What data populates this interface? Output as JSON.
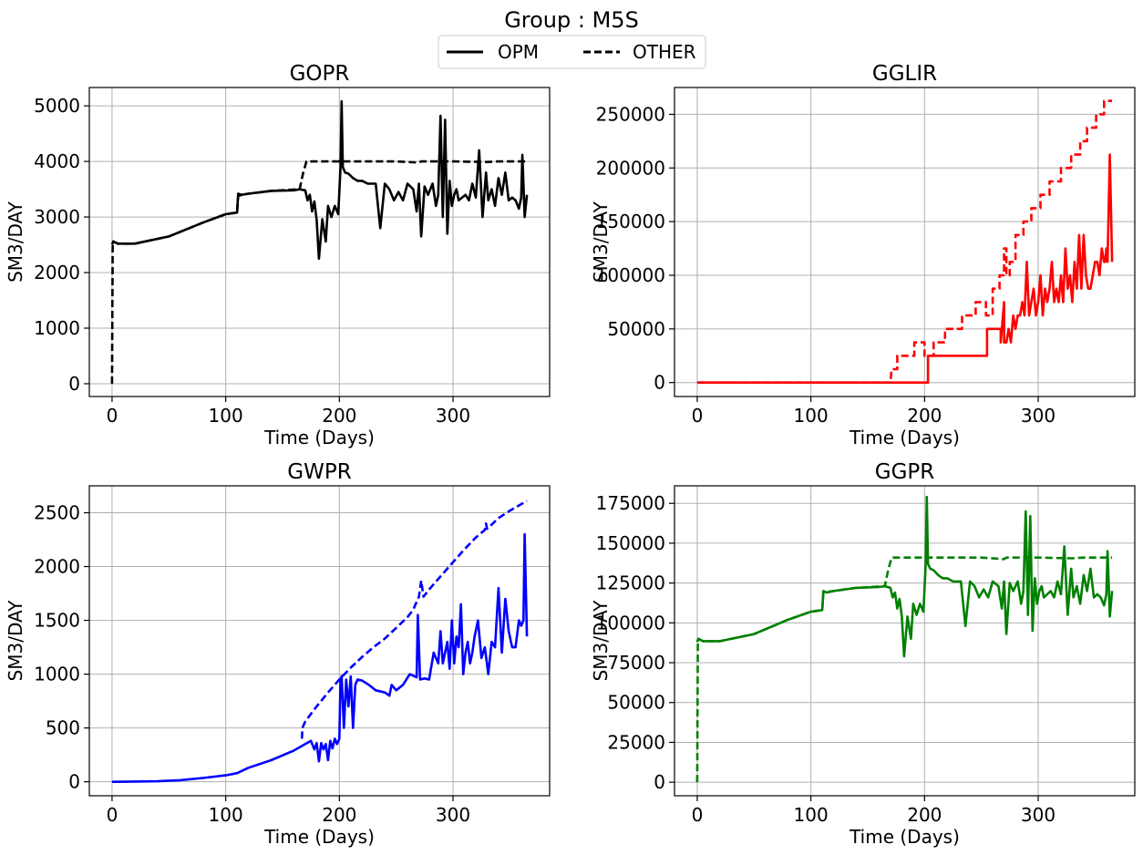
{
  "figure": {
    "title": "Group : M5S"
  },
  "legend": {
    "placement": "top-center",
    "items": [
      {
        "label": "OPM",
        "style": "solid"
      },
      {
        "label": "OTHER",
        "style": "dashed"
      }
    ]
  },
  "chart_data": [
    {
      "type": "line",
      "title": "GOPR",
      "xlabel": "Time (Days)",
      "ylabel": "SM3/DAY",
      "xlim": [
        -20,
        385
      ],
      "ylim": [
        -230,
        5330
      ],
      "xticks": [
        0,
        100,
        200,
        300
      ],
      "yticks": [
        0,
        1000,
        2000,
        3000,
        4000,
        5000
      ],
      "grid": true,
      "color": "#000000",
      "series": [
        {
          "name": "OPM",
          "style": "solid",
          "x": [
            0,
            1,
            5,
            20,
            50,
            80,
            100,
            110,
            111,
            114,
            120,
            140,
            160,
            165,
            170,
            172,
            174,
            176,
            178,
            180,
            182,
            185,
            188,
            190,
            193,
            196,
            199,
            201,
            202,
            203,
            205,
            208,
            212,
            216,
            220,
            225,
            232,
            236,
            240,
            244,
            248,
            252,
            256,
            260,
            265,
            268,
            270,
            272,
            275,
            278,
            282,
            285,
            287,
            289,
            291,
            293,
            295,
            297,
            299,
            301,
            303,
            305,
            308,
            311,
            314,
            317,
            320,
            323,
            326,
            329,
            331,
            334,
            337,
            340,
            343,
            346,
            349,
            352,
            355,
            358,
            360,
            361,
            363,
            365
          ],
          "y": [
            2500,
            2560,
            2520,
            2520,
            2650,
            2900,
            3050,
            3080,
            3420,
            3400,
            3420,
            3470,
            3480,
            3500,
            3480,
            3300,
            3400,
            3100,
            3280,
            2950,
            2250,
            2960,
            2560,
            3200,
            3000,
            3200,
            3050,
            3900,
            5080,
            3900,
            3800,
            3780,
            3700,
            3650,
            3650,
            3600,
            3600,
            2800,
            3600,
            3500,
            3300,
            3450,
            3300,
            3600,
            3500,
            3100,
            3600,
            2650,
            3550,
            3400,
            3600,
            3200,
            3400,
            4820,
            3000,
            4750,
            2700,
            3650,
            3200,
            3400,
            3500,
            3300,
            3350,
            3400,
            3300,
            3600,
            3350,
            4200,
            3000,
            3800,
            3300,
            3500,
            3200,
            3700,
            3400,
            3800,
            3300,
            3350,
            3300,
            3150,
            3350,
            4120,
            3000,
            3400
          ]
        },
        {
          "name": "OTHER",
          "style": "dashed",
          "x": [
            0,
            0.5,
            1,
            5,
            20,
            50,
            80,
            100,
            110,
            111,
            115,
            120,
            140,
            165,
            168,
            171,
            200,
            250,
            270,
            272,
            274,
            300,
            330,
            340,
            365
          ],
          "y": [
            0,
            2460,
            2560,
            2520,
            2520,
            2650,
            2900,
            3050,
            3080,
            3380,
            3400,
            3420,
            3470,
            3500,
            3780,
            4000,
            4000,
            4000,
            3980,
            4000,
            4000,
            4000,
            3990,
            4000,
            4000
          ]
        }
      ]
    },
    {
      "type": "line",
      "title": "GGLIR",
      "xlabel": "Time (Days)",
      "ylabel": "SM3/DAY",
      "xlim": [
        -20,
        385
      ],
      "ylim": [
        -13000,
        275000
      ],
      "xticks": [
        0,
        100,
        200,
        300
      ],
      "yticks": [
        0,
        50000,
        100000,
        150000,
        200000,
        250000
      ],
      "grid": true,
      "color": "#ff0000",
      "series": [
        {
          "name": "OPM",
          "style": "solid",
          "x": [
            0,
            203,
            203,
            255,
            255,
            267,
            267,
            270,
            270,
            272,
            274,
            276,
            278,
            280,
            282,
            284,
            286,
            288,
            290,
            292,
            294,
            296,
            298,
            300,
            302,
            304,
            306,
            308,
            310,
            312,
            314,
            316,
            318,
            320,
            322,
            324,
            326,
            328,
            330,
            332,
            334,
            336,
            338,
            340,
            342,
            344,
            346,
            348,
            350,
            352,
            354,
            356,
            358,
            359,
            360,
            361,
            363,
            365
          ],
          "y": [
            0,
            0,
            25000,
            25000,
            50000,
            50000,
            37500,
            75000,
            37500,
            37500,
            50000,
            37500,
            62500,
            50000,
            62500,
            62500,
            75000,
            62500,
            112500,
            62500,
            75000,
            87500,
            62500,
            75000,
            100000,
            62500,
            87500,
            75000,
            87500,
            112500,
            75000,
            87500,
            75000,
            100000,
            75000,
            125000,
            87500,
            100000,
            75000,
            112500,
            87500,
            137500,
            87500,
            137500,
            100000,
            87500,
            87500,
            100000,
            112500,
            112500,
            100000,
            125000,
            112500,
            112500,
            125000,
            112500,
            212500,
            112500
          ]
        },
        {
          "name": "OTHER",
          "style": "dashed",
          "x": [
            0,
            170,
            171,
            176,
            176,
            191,
            191,
            200,
            200,
            208,
            208,
            218,
            218,
            233,
            233,
            245,
            245,
            254,
            254,
            260,
            260,
            266,
            266,
            270,
            270,
            272,
            272,
            275,
            275,
            280,
            280,
            287,
            287,
            294,
            294,
            302,
            302,
            310,
            310,
            320,
            320,
            329,
            329,
            337,
            337,
            343,
            343,
            351,
            351,
            358,
            358,
            365
          ],
          "y": [
            0,
            0,
            12500,
            12500,
            25000,
            25000,
            37500,
            37500,
            25000,
            25000,
            37500,
            37500,
            50000,
            50000,
            62500,
            62500,
            75000,
            75000,
            62500,
            62500,
            87500,
            87500,
            100000,
            100000,
            125000,
            125000,
            100000,
            100000,
            112500,
            112500,
            137500,
            137500,
            150000,
            150000,
            162500,
            162500,
            175000,
            175000,
            187500,
            187500,
            200000,
            200000,
            212500,
            212500,
            225000,
            225000,
            237500,
            237500,
            250000,
            250000,
            262500,
            262500
          ]
        }
      ]
    },
    {
      "type": "line",
      "title": "GWPR",
      "xlabel": "Time (Days)",
      "ylabel": "SM3/DAY",
      "xlim": [
        -20,
        385
      ],
      "ylim": [
        -130,
        2750
      ],
      "xticks": [
        0,
        100,
        200,
        300
      ],
      "yticks": [
        0,
        500,
        1000,
        1500,
        2000,
        2500
      ],
      "grid": true,
      "color": "#0000ff",
      "series": [
        {
          "name": "OPM",
          "style": "solid",
          "x": [
            0,
            20,
            40,
            60,
            80,
            100,
            110,
            120,
            140,
            160,
            170,
            175,
            178,
            180,
            182,
            184,
            186,
            188,
            190,
            192,
            194,
            196,
            198,
            200,
            201,
            202,
            204,
            206,
            208,
            210,
            212,
            214,
            216,
            220,
            226,
            232,
            240,
            244,
            246,
            250,
            256,
            262,
            268,
            269,
            271,
            275,
            279,
            283,
            287,
            289,
            291,
            293,
            295,
            297,
            299,
            301,
            303,
            305,
            307,
            309,
            311,
            313,
            315,
            317,
            319,
            322,
            325,
            328,
            331,
            334,
            337,
            340,
            343,
            346,
            349,
            352,
            355,
            358,
            360,
            362,
            363,
            365
          ],
          "y": [
            0,
            2,
            5,
            15,
            35,
            60,
            80,
            130,
            200,
            290,
            350,
            380,
            300,
            360,
            190,
            360,
            300,
            350,
            200,
            380,
            310,
            400,
            350,
            400,
            950,
            980,
            500,
            950,
            700,
            980,
            500,
            900,
            950,
            940,
            900,
            850,
            830,
            800,
            900,
            850,
            900,
            1000,
            970,
            1550,
            950,
            960,
            950,
            1200,
            1100,
            1400,
            1100,
            1200,
            1300,
            1050,
            1500,
            1100,
            1350,
            1250,
            1650,
            1000,
            1200,
            1300,
            1100,
            1200,
            1350,
            1500,
            1150,
            1250,
            1000,
            1300,
            1250,
            1800,
            1200,
            1700,
            1400,
            1250,
            1250,
            1500,
            1450,
            1500,
            2300,
            1350
          ]
        },
        {
          "name": "OTHER",
          "style": "dashed",
          "x": [
            167,
            167.5,
            170,
            180,
            190,
            200,
            210,
            220,
            230,
            240,
            250,
            260,
            265,
            270,
            272,
            274,
            280,
            290,
            300,
            310,
            320,
            328,
            329,
            330,
            335,
            340,
            350,
            360,
            365
          ],
          "y": [
            400,
            500,
            560,
            700,
            830,
            950,
            1060,
            1160,
            1250,
            1330,
            1430,
            1530,
            1600,
            1720,
            1870,
            1720,
            1800,
            1920,
            2040,
            2160,
            2270,
            2340,
            2400,
            2350,
            2400,
            2450,
            2520,
            2580,
            2610
          ]
        }
      ]
    },
    {
      "type": "line",
      "title": "GGPR",
      "xlabel": "Time (Days)",
      "ylabel": "SM3/DAY",
      "xlim": [
        -20,
        385
      ],
      "ylim": [
        -8500,
        186000
      ],
      "xticks": [
        0,
        100,
        200,
        300
      ],
      "yticks": [
        0,
        25000,
        50000,
        75000,
        100000,
        125000,
        150000,
        175000
      ],
      "grid": true,
      "color": "#008000",
      "series": [
        {
          "name": "OPM",
          "style": "solid",
          "x": [
            0,
            1,
            5,
            20,
            50,
            80,
            100,
            110,
            111,
            114,
            120,
            140,
            160,
            165,
            170,
            172,
            174,
            176,
            178,
            180,
            182,
            185,
            188,
            190,
            193,
            196,
            199,
            201,
            202,
            203,
            205,
            208,
            212,
            216,
            220,
            225,
            232,
            236,
            240,
            244,
            248,
            252,
            256,
            260,
            265,
            268,
            270,
            272,
            275,
            278,
            282,
            285,
            287,
            289,
            291,
            293,
            295,
            297,
            299,
            301,
            303,
            305,
            308,
            311,
            314,
            317,
            320,
            323,
            326,
            329,
            331,
            334,
            337,
            340,
            343,
            346,
            349,
            352,
            355,
            358,
            360,
            361,
            363,
            365
          ],
          "y": [
            88000,
            90000,
            88500,
            88500,
            93000,
            102000,
            107000,
            108000,
            120000,
            119000,
            120000,
            122000,
            122500,
            123000,
            122000,
            116000,
            119000,
            109000,
            115000,
            104000,
            79000,
            104000,
            90000,
            112000,
            105000,
            112000,
            107000,
            137000,
            179000,
            137000,
            134000,
            133000,
            130000,
            128000,
            128000,
            126000,
            126000,
            98000,
            126000,
            123000,
            116000,
            121000,
            116000,
            126000,
            123000,
            109000,
            126000,
            93000,
            125000,
            120000,
            126000,
            112000,
            120000,
            170000,
            105000,
            167000,
            95000,
            128000,
            112000,
            120000,
            123000,
            116000,
            118000,
            120000,
            116000,
            126000,
            118000,
            148000,
            105000,
            134000,
            116000,
            123000,
            112000,
            130000,
            120000,
            134000,
            116000,
            118000,
            116000,
            111000,
            118000,
            145000,
            104000,
            120000
          ]
        },
        {
          "name": "OTHER",
          "style": "dashed",
          "x": [
            0,
            0.5,
            1,
            5,
            20,
            50,
            80,
            100,
            110,
            111,
            115,
            120,
            140,
            165,
            168,
            171,
            200,
            250,
            270,
            272,
            274,
            300,
            330,
            340,
            365
          ],
          "y": [
            0,
            86000,
            90000,
            88500,
            88500,
            93000,
            102000,
            107000,
            108000,
            119000,
            119500,
            120000,
            122000,
            123000,
            133000,
            141000,
            141000,
            141000,
            140000,
            141000,
            141000,
            141000,
            140500,
            141000,
            141000
          ]
        }
      ]
    }
  ]
}
